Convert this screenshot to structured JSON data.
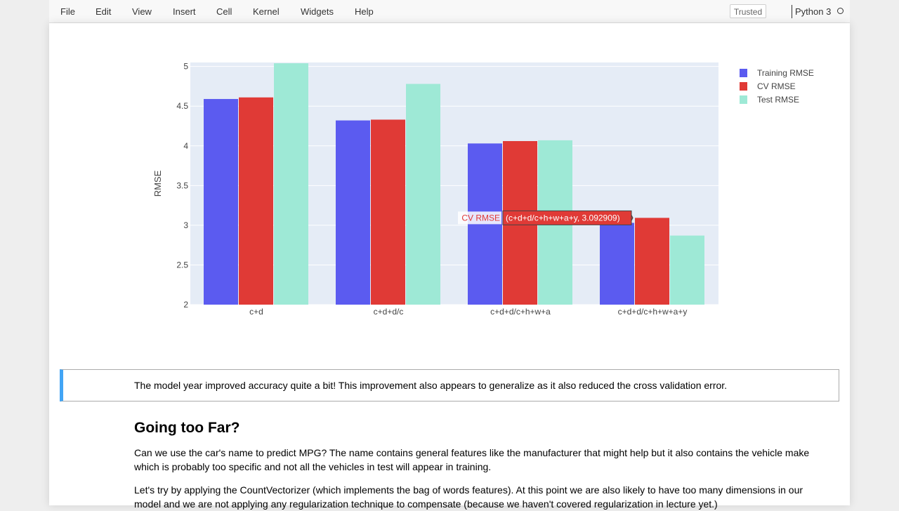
{
  "menu": {
    "items": [
      "File",
      "Edit",
      "View",
      "Insert",
      "Cell",
      "Kernel",
      "Widgets",
      "Help"
    ],
    "trusted_label": "Trusted",
    "kernel_name": "Python 3"
  },
  "chart_data": {
    "type": "bar",
    "categories": [
      "c+d",
      "c+d+d/c",
      "c+d+d/c+h+w+a",
      "c+d+d/c+h+w+a+y"
    ],
    "series": [
      {
        "name": "Training RMSE",
        "color": "#5b5bf0",
        "values": [
          4.59,
          4.32,
          4.03,
          3.03
        ]
      },
      {
        "name": "CV RMSE",
        "color": "#e03a36",
        "values": [
          4.61,
          4.33,
          4.06,
          3.092909
        ]
      },
      {
        "name": "Test RMSE",
        "color": "#9ee9d6",
        "values": [
          5.04,
          4.78,
          4.07,
          2.87
        ]
      }
    ],
    "ylabel": "RMSE",
    "ylim": [
      2,
      5.05
    ],
    "yticks": [
      "2",
      "2.5",
      "3",
      "3.5",
      "4",
      "4.5",
      "5"
    ],
    "ytick_values": [
      2,
      2.5,
      3,
      3.5,
      4,
      4.5,
      5
    ],
    "grid": true,
    "legend_position": "right",
    "plot_bg": "#e5ecf6",
    "hover": {
      "series_label": "CV RMSE",
      "text": "(c+d+d/c+h+w+a+y, 3.092909)"
    }
  },
  "markdown": {
    "cell_text": "The model year improved accuracy quite a bit! This improvement also appears to generalize as it also reduced the cross validation error.",
    "heading": "Going too Far?",
    "para1": "Can we use the car's name to predict MPG? The name contains general features like the manufacturer that might help but it also contains the vehicle make which is probably too specific and not all the vehicles in test will appear in training.",
    "para2": "Let's try by applying the CountVectorizer (which implements the bag of words features). At this point we are also likely to have too many dimensions in our model and we are not applying any regularization technique to compensate (because we haven't covered regularization in lecture yet.)"
  }
}
